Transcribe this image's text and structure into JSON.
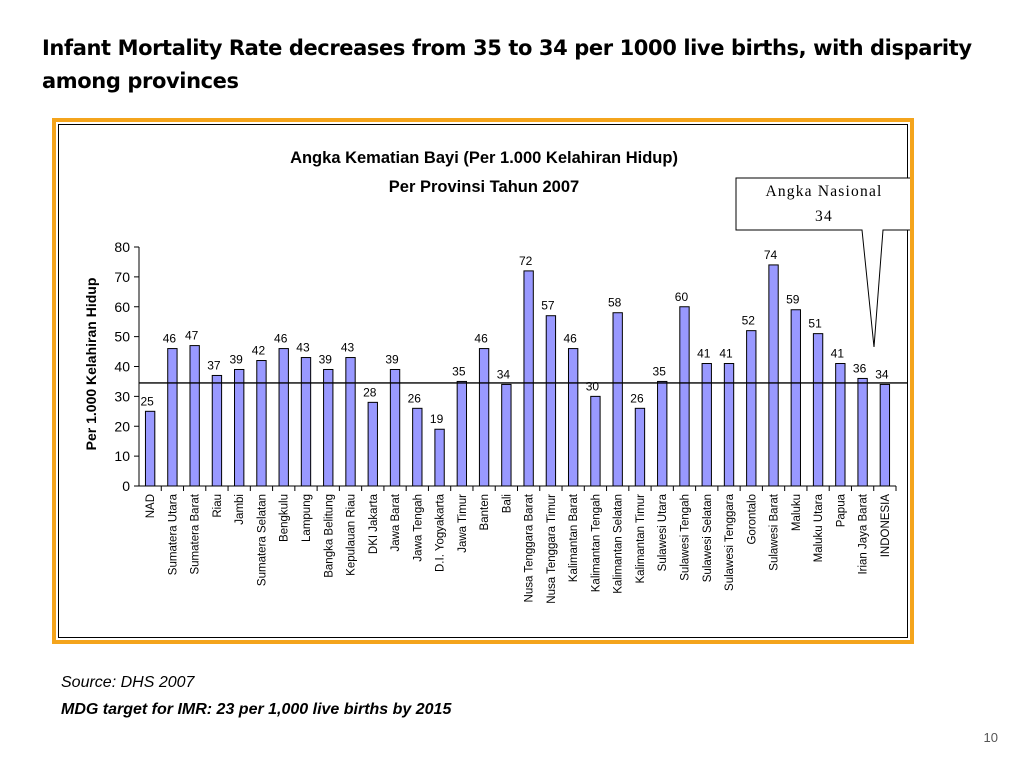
{
  "slide": {
    "title": "Infant Mortality Rate decreases from  35 to  34 per 1000 live births, with disparity among provinces",
    "source": "Source: DHS 2007",
    "mdg_target": "MDG target for IMR: 23 per 1,000 live births by 2015",
    "page_number": "10"
  },
  "chart_data": {
    "type": "bar",
    "title": "Angka Kematian Bayi (Per 1.000 Kelahiran Hidup)",
    "subtitle": "Per Provinsi Tahun 2007",
    "ylabel": "Per 1.000 Kelahiran Hidup",
    "xlabel": "",
    "ylim": [
      0,
      80
    ],
    "yticks": [
      0,
      10,
      20,
      30,
      40,
      50,
      60,
      70,
      80
    ],
    "grid": false,
    "legend": "none",
    "bar_color": "#9999ff",
    "categories": [
      "NAD",
      "Sumatera Utara",
      "Sumatera Barat",
      "Riau",
      "Jambi",
      "Sumatera Selatan",
      "Bengkulu",
      "Lampung",
      "Bangka Belitung",
      "Kepulauan Riau",
      "DKI Jakarta",
      "Jawa Barat",
      "Jawa Tengah",
      "D.I. Yogyakarta",
      "Jawa Timur",
      "Banten",
      "Bali",
      "Nusa Tenggara Barat",
      "Nusa Tenggara Timur",
      "Kalimantan Barat",
      "Kalimantan Tengah",
      "Kalimantan Selatan",
      "Kalimantan Timur",
      "Sulawesi Utara",
      "Sulawesi Tengah",
      "Sulawesi Selatan",
      "Sulawesi Tenggara",
      "Gorontalo",
      "Sulawesi Barat",
      "Maluku",
      "Maluku Utara",
      "Papua",
      "Irian Jaya Barat",
      "INDONESIA"
    ],
    "values": [
      25,
      46,
      47,
      37,
      39,
      42,
      46,
      43,
      39,
      43,
      28,
      39,
      26,
      19,
      35,
      46,
      34,
      72,
      57,
      46,
      30,
      58,
      26,
      35,
      60,
      41,
      41,
      52,
      74,
      59,
      51,
      41,
      36,
      34
    ],
    "reference_line": {
      "value": 34.5
    },
    "annotation": {
      "line1": "Angka Nasional",
      "line2": "34"
    }
  }
}
